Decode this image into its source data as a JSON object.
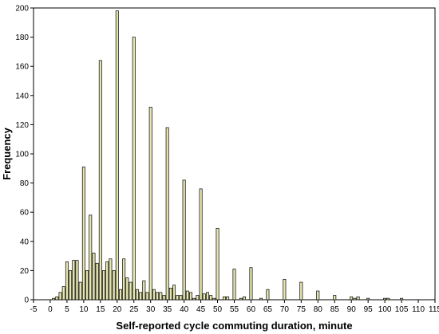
{
  "chart_data": {
    "type": "bar",
    "title": "",
    "xlabel": "Self-reported cycle commuting duration, minute",
    "ylabel": "Frequency",
    "xlim": [
      -5,
      115
    ],
    "ylim": [
      0,
      200
    ],
    "xticks": [
      -5,
      0,
      5,
      10,
      15,
      20,
      25,
      30,
      35,
      40,
      45,
      50,
      55,
      60,
      65,
      70,
      75,
      80,
      85,
      90,
      95,
      100,
      105,
      110,
      115
    ],
    "yticks": [
      0,
      20,
      40,
      60,
      80,
      100,
      120,
      140,
      160,
      180,
      200
    ],
    "grid": false,
    "legend": "none",
    "bar_color": "#e6e6b0",
    "bar_edge_color": "#000000",
    "x": [
      1,
      2,
      3,
      4,
      5,
      6,
      7,
      8,
      9,
      10,
      11,
      12,
      13,
      14,
      15,
      16,
      17,
      18,
      19,
      20,
      21,
      22,
      23,
      24,
      25,
      26,
      27,
      28,
      29,
      30,
      31,
      32,
      33,
      34,
      35,
      36,
      37,
      38,
      39,
      40,
      41,
      42,
      43,
      44,
      45,
      46,
      47,
      48,
      49,
      50,
      52,
      53,
      55,
      57,
      58,
      60,
      63,
      65,
      70,
      75,
      80,
      85,
      90,
      91,
      92,
      95,
      100,
      101,
      105
    ],
    "values": [
      1,
      2,
      5,
      9,
      26,
      20,
      27,
      27,
      12,
      91,
      20,
      58,
      32,
      25,
      164,
      20,
      26,
      28,
      20,
      198,
      7,
      28,
      15,
      12,
      180,
      7,
      5,
      13,
      5,
      132,
      7,
      5,
      5,
      3,
      118,
      8,
      10,
      3,
      3,
      82,
      6,
      5,
      1,
      3,
      76,
      4,
      5,
      3,
      1,
      49,
      2,
      2,
      21,
      1,
      2,
      22,
      1,
      7,
      14,
      12,
      6,
      3,
      2,
      1,
      2,
      1,
      1,
      1,
      1
    ]
  }
}
